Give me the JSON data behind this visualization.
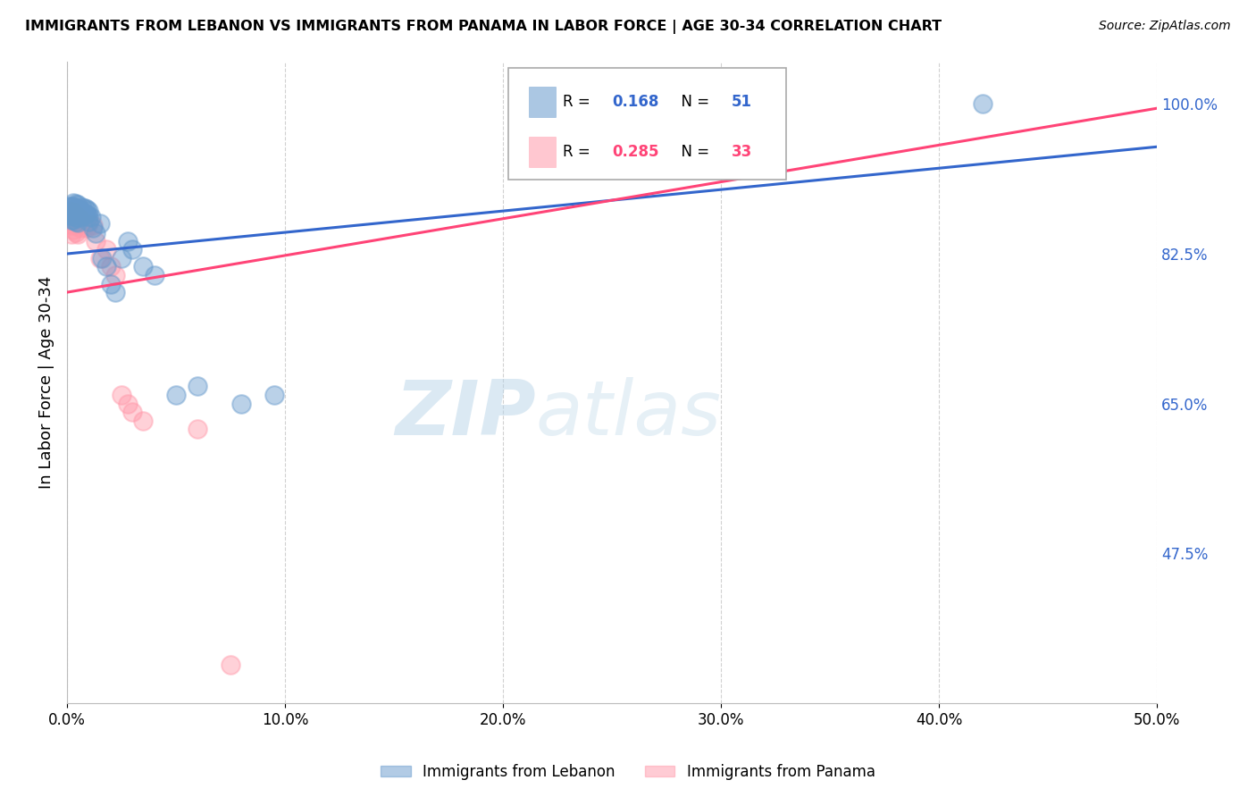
{
  "title": "IMMIGRANTS FROM LEBANON VS IMMIGRANTS FROM PANAMA IN LABOR FORCE | AGE 30-34 CORRELATION CHART",
  "source": "Source: ZipAtlas.com",
  "ylabel": "In Labor Force | Age 30-34",
  "xlim": [
    0.0,
    0.5
  ],
  "ylim": [
    0.3,
    1.05
  ],
  "xtick_labels": [
    "0.0%",
    "10.0%",
    "20.0%",
    "30.0%",
    "40.0%",
    "50.0%"
  ],
  "xtick_vals": [
    0.0,
    0.1,
    0.2,
    0.3,
    0.4,
    0.5
  ],
  "ytick_labels": [
    "47.5%",
    "65.0%",
    "82.5%",
    "100.0%"
  ],
  "ytick_vals": [
    0.475,
    0.65,
    0.825,
    1.0
  ],
  "lebanon_color": "#6699CC",
  "panama_color": "#FF99AA",
  "trend_lebanon_color": "#3366CC",
  "trend_panama_color": "#FF4477",
  "R_lebanon": 0.168,
  "N_lebanon": 51,
  "R_panama": 0.285,
  "N_panama": 33,
  "watermark_zip": "ZIP",
  "watermark_atlas": "atlas",
  "lebanon_x": [
    0.001,
    0.001,
    0.002,
    0.002,
    0.002,
    0.002,
    0.003,
    0.003,
    0.003,
    0.003,
    0.003,
    0.004,
    0.004,
    0.004,
    0.004,
    0.004,
    0.005,
    0.005,
    0.005,
    0.005,
    0.005,
    0.006,
    0.006,
    0.007,
    0.007,
    0.007,
    0.008,
    0.008,
    0.009,
    0.009,
    0.01,
    0.01,
    0.01,
    0.011,
    0.012,
    0.013,
    0.015,
    0.016,
    0.018,
    0.02,
    0.022,
    0.025,
    0.028,
    0.03,
    0.035,
    0.04,
    0.05,
    0.06,
    0.08,
    0.095,
    0.42
  ],
  "lebanon_y": [
    0.88,
    0.87,
    0.88,
    0.875,
    0.87,
    0.865,
    0.885,
    0.88,
    0.875,
    0.87,
    0.865,
    0.883,
    0.878,
    0.873,
    0.868,
    0.863,
    0.882,
    0.877,
    0.872,
    0.867,
    0.862,
    0.876,
    0.871,
    0.879,
    0.874,
    0.869,
    0.878,
    0.872,
    0.877,
    0.871,
    0.875,
    0.869,
    0.863,
    0.868,
    0.855,
    0.849,
    0.86,
    0.82,
    0.81,
    0.79,
    0.78,
    0.82,
    0.84,
    0.83,
    0.81,
    0.8,
    0.66,
    0.67,
    0.65,
    0.66,
    1.0
  ],
  "panama_x": [
    0.001,
    0.001,
    0.002,
    0.002,
    0.002,
    0.002,
    0.003,
    0.003,
    0.003,
    0.004,
    0.004,
    0.004,
    0.005,
    0.005,
    0.005,
    0.006,
    0.006,
    0.007,
    0.008,
    0.009,
    0.01,
    0.012,
    0.013,
    0.015,
    0.018,
    0.02,
    0.022,
    0.025,
    0.028,
    0.03,
    0.035,
    0.06,
    0.075
  ],
  "panama_y": [
    0.87,
    0.86,
    0.875,
    0.868,
    0.858,
    0.848,
    0.873,
    0.863,
    0.853,
    0.87,
    0.86,
    0.85,
    0.868,
    0.858,
    0.848,
    0.865,
    0.855,
    0.862,
    0.858,
    0.855,
    0.86,
    0.858,
    0.84,
    0.82,
    0.83,
    0.81,
    0.8,
    0.66,
    0.65,
    0.64,
    0.63,
    0.62,
    0.345
  ],
  "trend_leb_x0": 0.0,
  "trend_leb_y0": 0.825,
  "trend_leb_x1": 0.5,
  "trend_leb_y1": 0.95,
  "trend_pan_x0": 0.0,
  "trend_pan_y0": 0.78,
  "trend_pan_x1": 0.5,
  "trend_pan_y1": 0.995
}
